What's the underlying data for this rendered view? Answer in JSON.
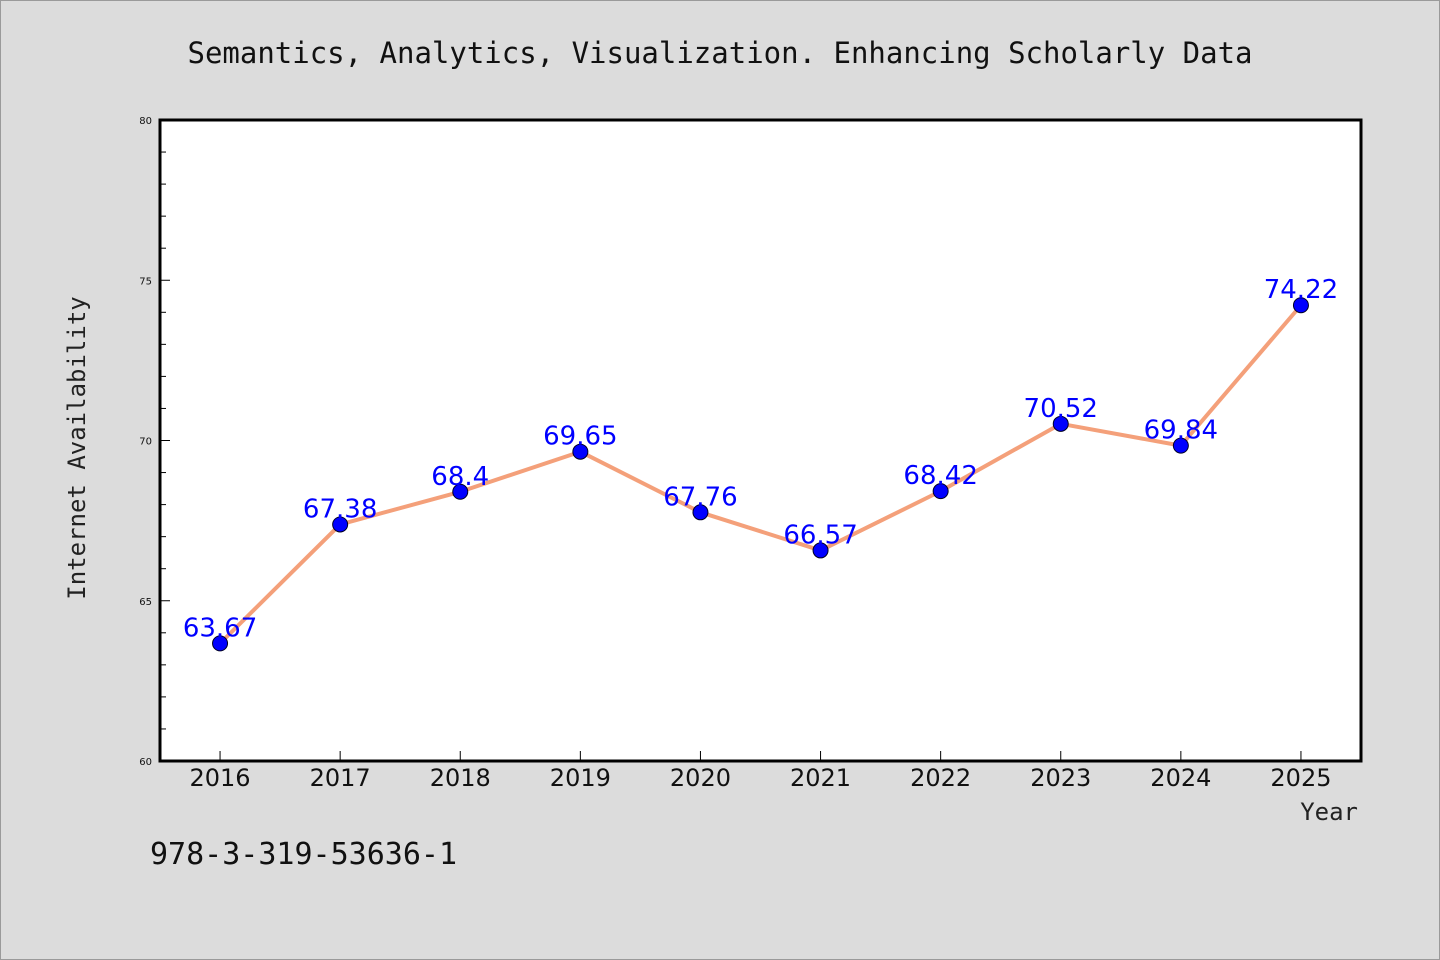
{
  "chart_data": {
    "type": "line",
    "title": "Semantics, Analytics, Visualization. Enhancing Scholarly Data",
    "xlabel": "Year",
    "ylabel": "Internet Availability",
    "categories": [
      "2016",
      "2017",
      "2018",
      "2019",
      "2020",
      "2021",
      "2022",
      "2023",
      "2024",
      "2025"
    ],
    "series": [
      {
        "values": [
          63.67,
          67.38,
          68.4,
          69.65,
          67.76,
          66.57,
          68.42,
          70.52,
          69.84,
          74.22
        ],
        "labels": [
          "63.67",
          "67.38",
          "68.4",
          "69.65",
          "67.76",
          "66.57",
          "68.42",
          "70.52",
          "69.84",
          "74.22"
        ],
        "line_color": "#f4a07a",
        "marker_color": "#0000ff"
      }
    ],
    "ylim": [
      60,
      80
    ],
    "yticks": [
      "60",
      "65",
      "70",
      "75",
      "80"
    ],
    "grid": false,
    "legend": "none"
  },
  "footer_text": "978-3-319-53636-1"
}
